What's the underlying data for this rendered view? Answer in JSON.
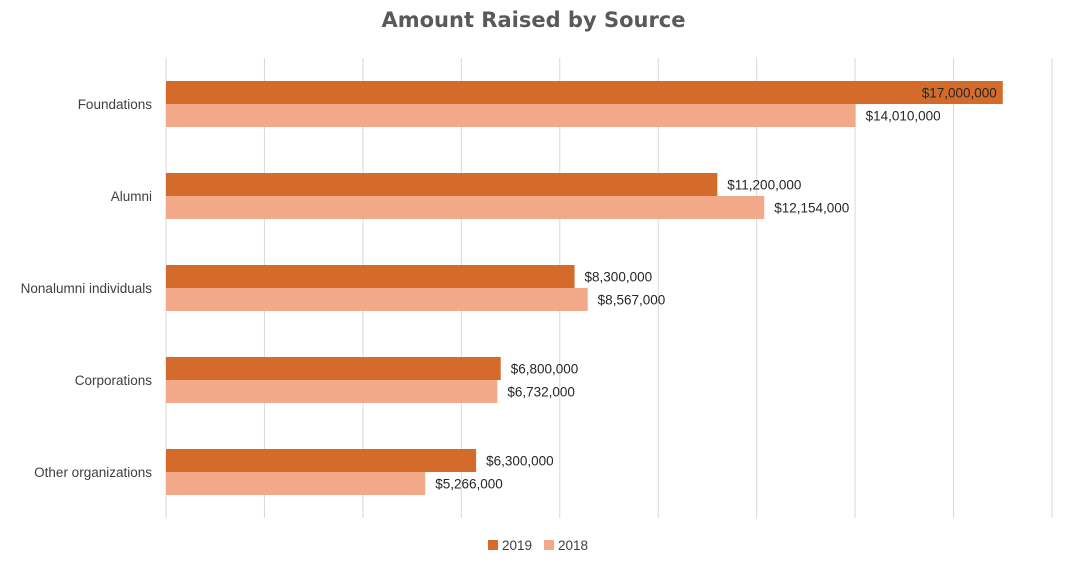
{
  "chart_data": {
    "type": "bar",
    "orientation": "horizontal",
    "title": "Amount Raised by Source",
    "categories": [
      "Foundations",
      "Alumni",
      "Nonalumni individuals",
      "Corporations",
      "Other organizations"
    ],
    "series": [
      {
        "name": "2019",
        "color": "#D46B2A",
        "values": [
          17000000,
          11200000,
          8300000,
          6800000,
          6300000
        ],
        "labels": [
          "$17,000,000",
          "$11,200,000",
          "$8,300,000",
          "$6,800,000",
          "$6,300,000"
        ]
      },
      {
        "name": "2018",
        "color": "#F2A98A",
        "values": [
          14010000,
          12154000,
          8567000,
          6732000,
          5266000
        ],
        "labels": [
          "$14,010,000",
          "$12,154,000",
          "$8,567,000",
          "$6,732,000",
          "$5,266,000"
        ]
      }
    ],
    "xlim": [
      0,
      18000000
    ],
    "grid": true,
    "legend": "bottom-center"
  }
}
